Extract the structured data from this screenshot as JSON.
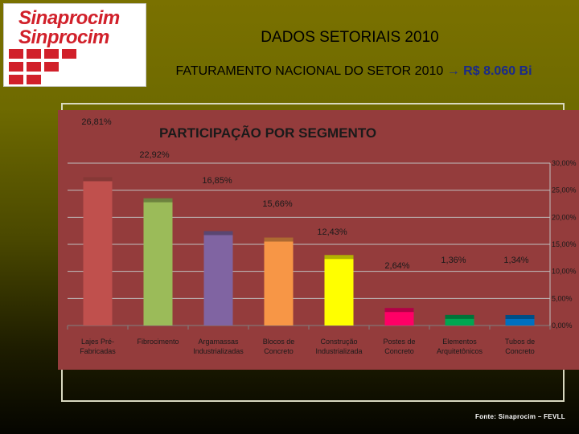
{
  "logo": {
    "line1": "Sinaprocim",
    "line2": "Sinprocim"
  },
  "header": {
    "title": "DADOS SETORIAIS 2010",
    "subtitle_prefix": "FATURAMENTO NACIONAL DO SETOR 2010",
    "subtitle_arrow": "→",
    "subtitle_value": "R$ 8.060 Bi"
  },
  "footer": {
    "source": "Fonte: Sinaprocim – FEVLL"
  },
  "colors": {
    "background": "#6e6a00",
    "panel": "#943c3c",
    "bars": [
      "#c0504d",
      "#9bbb59",
      "#8064a2",
      "#f79646",
      "#ffff00",
      "#ff0066",
      "#00a651",
      "#0070c0"
    ]
  },
  "chart_data": {
    "type": "bar",
    "title": "PARTICIPAÇÃO POR SEGMENTO",
    "categories": [
      [
        "Lajes Pré-",
        "Fabricadas"
      ],
      [
        "Fibrocimento"
      ],
      [
        "Argamassas",
        "Industrializadas"
      ],
      [
        "Blocos de",
        "Concreto"
      ],
      [
        "Construção",
        "Industrializada"
      ],
      [
        "Postes de",
        "Concreto"
      ],
      [
        "Elementos",
        "Arquitetônicos"
      ],
      [
        "Tubos de",
        "Concreto"
      ]
    ],
    "values": [
      26.81,
      22.92,
      16.85,
      15.66,
      12.43,
      2.64,
      1.36,
      1.34
    ],
    "data_labels": [
      "26,81%",
      "22,92%",
      "16,85%",
      "15,66%",
      "12,43%",
      "2,64%",
      "1,36%",
      "1,34%"
    ],
    "y_ticks": [
      0,
      5,
      10,
      15,
      20,
      25,
      30
    ],
    "y_tick_labels": [
      "0,00%",
      "5,00%",
      "10,00%",
      "15,00%",
      "20,00%",
      "25,00%",
      "30,00%"
    ],
    "ylim": [
      0,
      30
    ],
    "y_axis_side": "right",
    "grid": true,
    "legend": "none"
  }
}
